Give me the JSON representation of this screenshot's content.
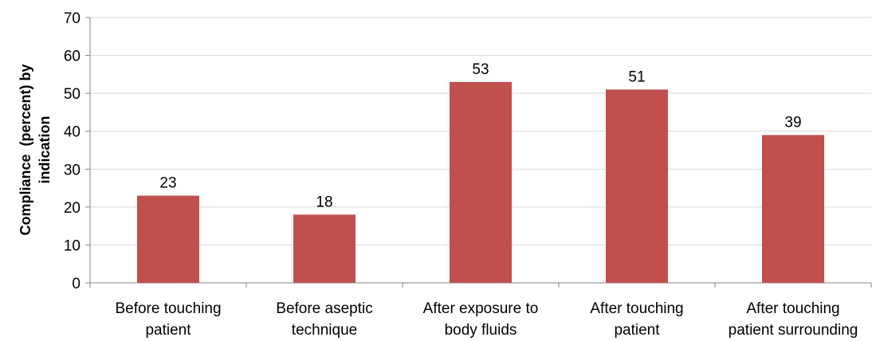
{
  "chart_data": {
    "type": "bar",
    "categories": [
      [
        "Before touching",
        "patient"
      ],
      [
        "Before aseptic",
        "technique"
      ],
      [
        "After exposure to",
        "body fluids"
      ],
      [
        "After touching",
        "patient"
      ],
      [
        "After touching",
        "patient surrounding"
      ]
    ],
    "values": [
      23,
      18,
      53,
      51,
      39
    ],
    "ylabel": [
      "Compliance  (percent) by",
      "indication"
    ],
    "ylim": [
      0,
      70
    ],
    "yticks": [
      0,
      10,
      20,
      30,
      40,
      50,
      60,
      70
    ],
    "grid": true,
    "legend": "none",
    "colors": {
      "bar": "#c0504d",
      "grid": "#d9d9d9",
      "axis": "#868686"
    }
  }
}
